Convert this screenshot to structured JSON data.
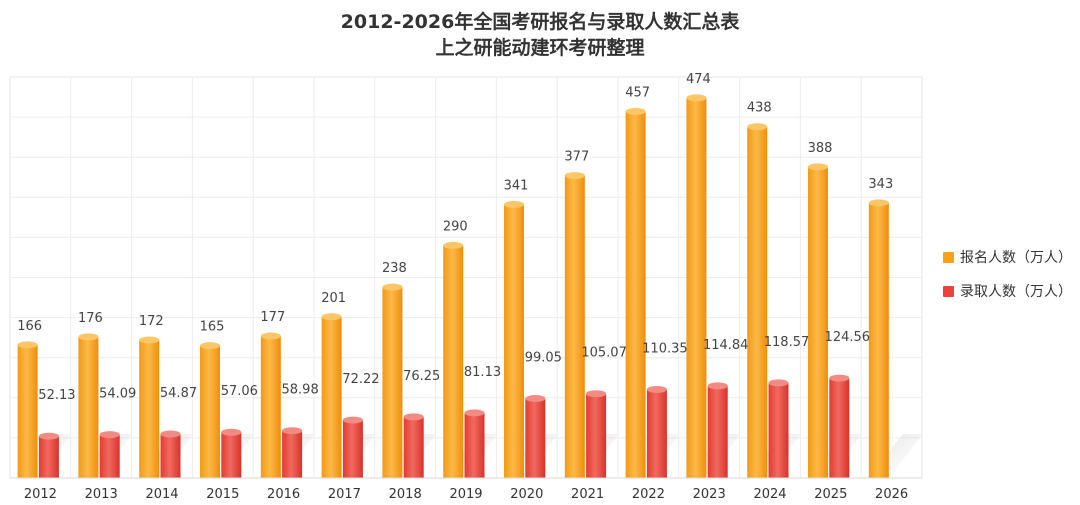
{
  "chart_data": {
    "type": "bar",
    "title": "2012-2026年全国考研报名与录取人数汇总表",
    "subtitle": "上之研能动建环考研整理",
    "categories": [
      "2012",
      "2013",
      "2014",
      "2015",
      "2016",
      "2017",
      "2018",
      "2019",
      "2020",
      "2021",
      "2022",
      "2023",
      "2024",
      "2025",
      "2026"
    ],
    "series": [
      {
        "name": "报名人数（万人）",
        "color": "#F7A11A",
        "values": [
          166,
          176,
          172,
          165,
          177,
          201,
          238,
          290,
          341,
          377,
          457,
          474,
          438,
          388,
          343
        ],
        "labels": [
          "166",
          "176",
          "172",
          "165",
          "177",
          "201",
          "238",
          "290",
          "341",
          "377",
          "457",
          "474",
          "438",
          "388",
          "343"
        ]
      },
      {
        "name": "录取人数（万人）",
        "color": "#E8443C",
        "values": [
          52.13,
          54.09,
          54.87,
          57.06,
          58.98,
          72.22,
          76.25,
          81.13,
          99.05,
          105.07,
          110.35,
          114.84,
          118.57,
          124.56,
          null
        ],
        "labels": [
          "52.13",
          "54.09",
          "54.87",
          "57.06",
          "58.98",
          "72.22",
          "76.25",
          "81.13",
          "99.05",
          "105.07",
          "110.35",
          "114.84",
          "118.57",
          "124.56",
          ""
        ]
      }
    ],
    "ylim": [
      0,
      500
    ],
    "grid": true,
    "legend": "right"
  }
}
